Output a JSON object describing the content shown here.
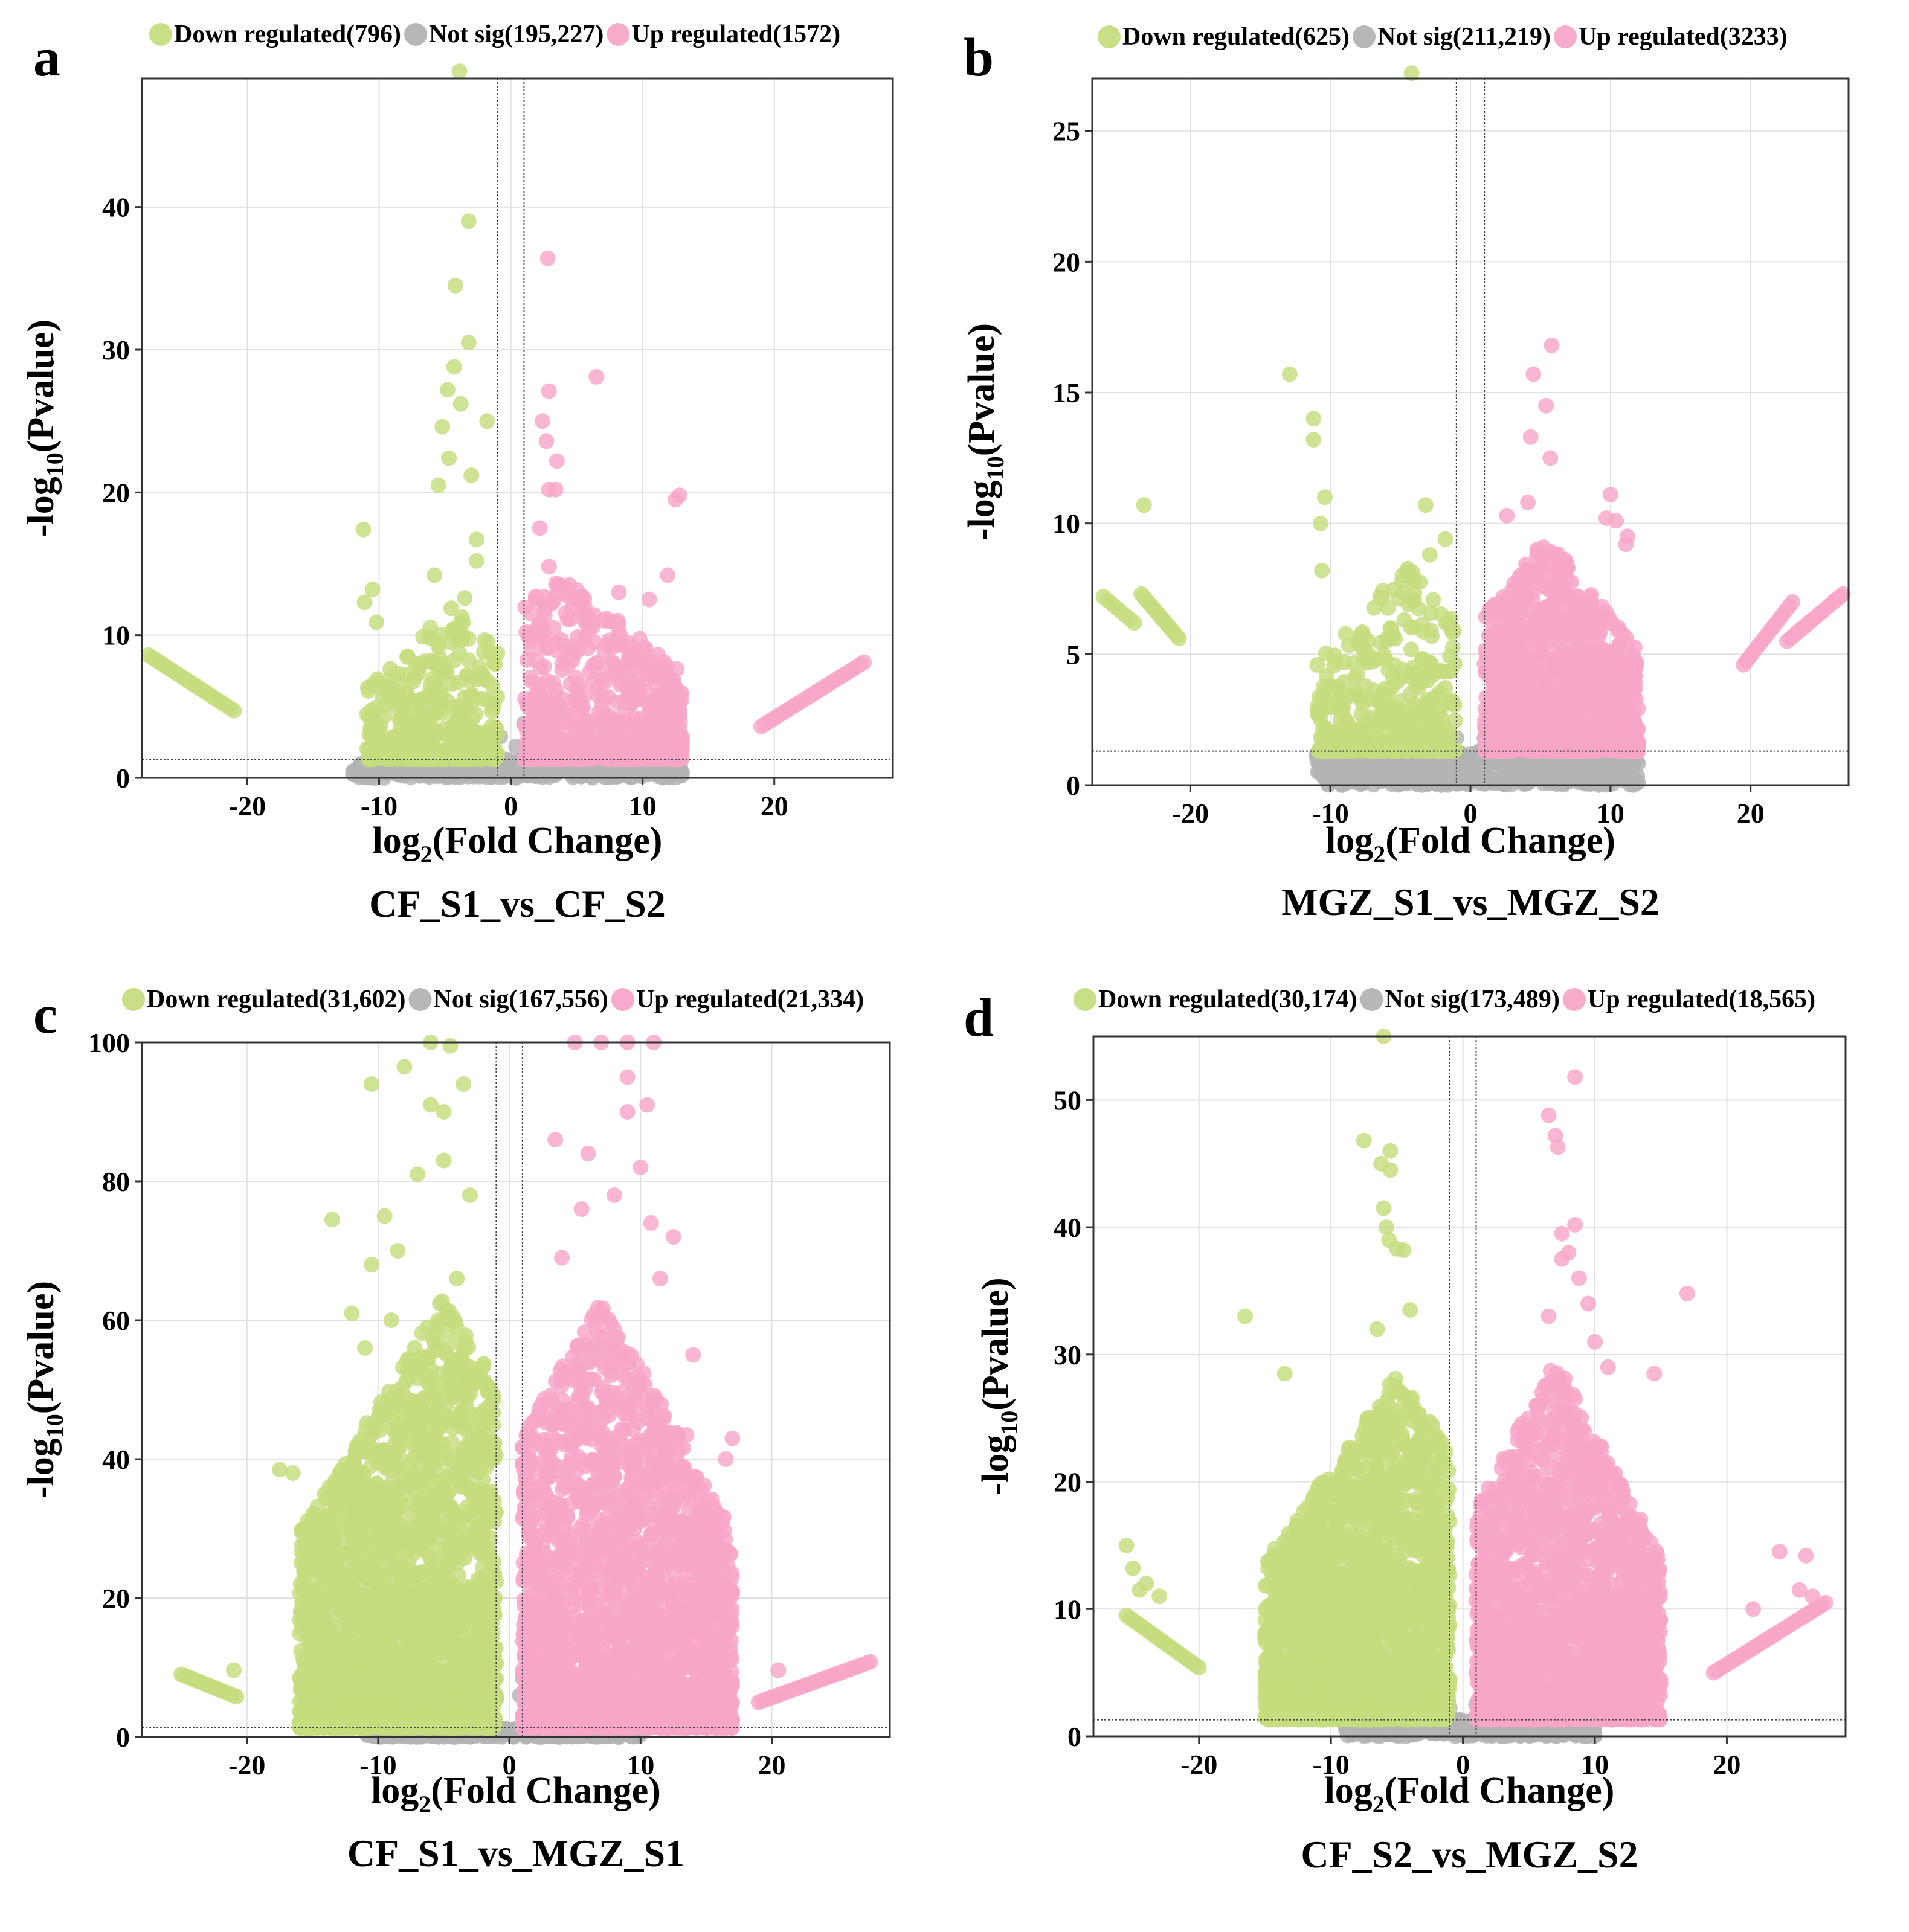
{
  "figure": {
    "background": "#ffffff"
  },
  "colors": {
    "down": "#c5dd7e",
    "notsig": "#b3b3b3",
    "up": "#f8a6c8",
    "grid": "#e0e0e0",
    "axis": "#333333"
  },
  "chart_data": [
    {
      "type": "scatter",
      "panel_label": "a",
      "title": "CF_S1_vs_CF_S2",
      "xlabel_prefix": "log",
      "xlabel_sub": "2",
      "xlabel_suffix": "(Fold Change)",
      "ylabel_prefix": "-log",
      "ylabel_sub": "10",
      "ylabel_suffix": "(Pvalue)",
      "legend": [
        {
          "name": "Down regulated",
          "count": "(796)",
          "key": "down"
        },
        {
          "name": "Not sig",
          "count": "(195,227)",
          "key": "notsig"
        },
        {
          "name": "Up regulated",
          "count": "(1572)",
          "key": "up"
        }
      ],
      "xlim": [
        -28,
        29
      ],
      "ylim": [
        0,
        49
      ],
      "xticks": [
        -20,
        -10,
        0,
        10,
        20
      ],
      "yticks": [
        0,
        10,
        20,
        30,
        40
      ],
      "fc_cutoffs": [
        -1,
        1
      ],
      "p_cutoff": 1.3,
      "seed": 11,
      "clouds": {
        "down": {
          "n": 430,
          "xmin": -11,
          "xmax": -1,
          "center": -4.5,
          "ymax": 10.5,
          "power": 2.6
        },
        "up": {
          "n": 650,
          "xmin": 1,
          "xmax": 13,
          "center": 3.5,
          "ymax": 13,
          "power": 2.4
        },
        "notsig": {
          "n": 520,
          "xmin": -12,
          "xmax": 13,
          "ymax": 1.3
        }
      },
      "down_points": [
        {
          "x": -3.9,
          "y": 49.5
        },
        {
          "x": -3.2,
          "y": 39
        },
        {
          "x": -4.2,
          "y": 34.5
        },
        {
          "x": -3.2,
          "y": 30.5
        },
        {
          "x": -4.3,
          "y": 28.8
        },
        {
          "x": -4.8,
          "y": 27.2
        },
        {
          "x": -1.8,
          "y": 25
        },
        {
          "x": -3.8,
          "y": 26.2
        },
        {
          "x": -5.2,
          "y": 24.6
        },
        {
          "x": -3,
          "y": 21.2
        },
        {
          "x": -4.7,
          "y": 22.4
        },
        {
          "x": -5.5,
          "y": 20.5
        },
        {
          "x": -11.2,
          "y": 17.4
        },
        {
          "x": -2.6,
          "y": 16.7
        },
        {
          "x": -5.8,
          "y": 14.2
        },
        {
          "x": -2.6,
          "y": 15.2
        },
        {
          "x": -10.5,
          "y": 13.2
        },
        {
          "x": -11.1,
          "y": 12.3
        },
        {
          "x": -3.5,
          "y": 12.6
        },
        {
          "x": -10.2,
          "y": 10.9
        },
        {
          "x": -3.8,
          "y": 10.2
        }
      ],
      "up_points": [
        {
          "x": 2.8,
          "y": 36.4
        },
        {
          "x": 6.5,
          "y": 28.1
        },
        {
          "x": 2.9,
          "y": 27.1
        },
        {
          "x": 2.4,
          "y": 25
        },
        {
          "x": 2.7,
          "y": 23.6
        },
        {
          "x": 3.5,
          "y": 22.2
        },
        {
          "x": 12.8,
          "y": 19.8
        },
        {
          "x": 12.5,
          "y": 19.5
        },
        {
          "x": 2.9,
          "y": 20.2
        },
        {
          "x": 3.4,
          "y": 20.2
        },
        {
          "x": 2.2,
          "y": 17.5
        },
        {
          "x": 11.9,
          "y": 14.2
        },
        {
          "x": 2.9,
          "y": 14.8
        },
        {
          "x": 10.5,
          "y": 12.5
        },
        {
          "x": 8.2,
          "y": 13
        }
      ],
      "notsig_points": [
        {
          "x": -0.8,
          "y": 2.9
        },
        {
          "x": 1,
          "y": 3.8
        },
        {
          "x": 0.4,
          "y": 2.2
        }
      ],
      "down_tails": [
        {
          "x0": -27.5,
          "x1": -21,
          "y0": 8.6,
          "y1": 4.7,
          "n": 26
        }
      ],
      "up_tails": [
        {
          "x0": 19,
          "x1": 26.8,
          "y0": 3.6,
          "y1": 8.1,
          "n": 30
        }
      ]
    },
    {
      "type": "scatter",
      "panel_label": "b",
      "title": "MGZ_S1_vs_MGZ_S2",
      "xlabel_prefix": "log",
      "xlabel_sub": "2",
      "xlabel_suffix": "(Fold Change)",
      "ylabel_prefix": "-log",
      "ylabel_sub": "10",
      "ylabel_suffix": "(Pvalue)",
      "legend": [
        {
          "name": "Down regulated",
          "count": "(625)",
          "key": "down"
        },
        {
          "name": "Not sig",
          "count": "(211,219)",
          "key": "notsig"
        },
        {
          "name": "Up regulated",
          "count": "(3233)",
          "key": "up"
        }
      ],
      "xlim": [
        -27,
        27
      ],
      "ylim": [
        0,
        27
      ],
      "xticks": [
        -20,
        -10,
        0,
        10,
        20
      ],
      "yticks": [
        0,
        5,
        10,
        15,
        20,
        25
      ],
      "fc_cutoffs": [
        -1,
        1
      ],
      "p_cutoff": 1.3,
      "seed": 23,
      "clouds": {
        "down": {
          "n": 420,
          "xmin": -11,
          "xmax": -1,
          "center": -4.5,
          "ymax": 7,
          "power": 2.4
        },
        "up": {
          "n": 1200,
          "xmin": 1,
          "xmax": 12,
          "center": 5.5,
          "ymax": 8,
          "power": 1.8
        },
        "notsig": {
          "n": 600,
          "xmin": -11,
          "xmax": 12,
          "ymax": 1.3
        }
      },
      "down_points": [
        {
          "x": -4.2,
          "y": 27.2
        },
        {
          "x": -12.9,
          "y": 15.7
        },
        {
          "x": -11.2,
          "y": 14
        },
        {
          "x": -11.2,
          "y": 13.2
        },
        {
          "x": -3.2,
          "y": 10.7
        },
        {
          "x": -10.4,
          "y": 11
        },
        {
          "x": -10.7,
          "y": 10
        },
        {
          "x": -1.8,
          "y": 9.4
        },
        {
          "x": -10.6,
          "y": 8.2
        },
        {
          "x": -2.9,
          "y": 8.8
        },
        {
          "x": -23.3,
          "y": 10.7
        }
      ],
      "up_points": [
        {
          "x": 5.8,
          "y": 16.8
        },
        {
          "x": 4.5,
          "y": 15.7
        },
        {
          "x": 5.4,
          "y": 14.5
        },
        {
          "x": 4.3,
          "y": 13.3
        },
        {
          "x": 5.7,
          "y": 12.5
        },
        {
          "x": 10,
          "y": 11.1
        },
        {
          "x": 2.6,
          "y": 10.3
        },
        {
          "x": 11.2,
          "y": 9.5
        },
        {
          "x": 9.7,
          "y": 10.2
        },
        {
          "x": 10.4,
          "y": 10.1
        },
        {
          "x": 11.1,
          "y": 9.2
        },
        {
          "x": 4.1,
          "y": 10.8
        }
      ],
      "notsig_points": [
        {
          "x": -1,
          "y": 1.8
        },
        {
          "x": 1,
          "y": 1.8
        }
      ],
      "down_tails": [
        {
          "x0": -26.2,
          "x1": -24,
          "y0": 7.2,
          "y1": 6.2,
          "n": 8
        },
        {
          "x0": -23.5,
          "x1": -20.8,
          "y0": 7.3,
          "y1": 5.6,
          "n": 16
        }
      ],
      "up_tails": [
        {
          "x0": 19.5,
          "x1": 23,
          "y0": 4.6,
          "y1": 7,
          "n": 18
        },
        {
          "x0": 22.6,
          "x1": 26.6,
          "y0": 5.5,
          "y1": 7.3,
          "n": 18
        }
      ]
    },
    {
      "type": "scatter",
      "panel_label": "c",
      "title": "CF_S1_vs_MGZ_S1",
      "xlabel_prefix": "log",
      "xlabel_sub": "2",
      "xlabel_suffix": "(Fold Change)",
      "ylabel_prefix": "-log",
      "ylabel_sub": "10",
      "ylabel_suffix": "(Pvalue)",
      "legend": [
        {
          "name": "Down regulated",
          "count": "(31,602)",
          "key": "down"
        },
        {
          "name": "Not sig",
          "count": "(167,556)",
          "key": "notsig"
        },
        {
          "name": "Up regulated",
          "count": "(21,334)",
          "key": "up"
        }
      ],
      "xlim": [
        -28,
        29
      ],
      "ylim": [
        0,
        100
      ],
      "xticks": [
        -20,
        -10,
        0,
        10,
        20
      ],
      "yticks": [
        0,
        20,
        40,
        60,
        80,
        100
      ],
      "fc_cutoffs": [
        -1,
        1
      ],
      "p_cutoff": 1.3,
      "seed": 37,
      "clouds": {
        "down": {
          "n": 2600,
          "xmin": -16,
          "xmax": -1,
          "center": -5,
          "ymax": 62,
          "power": 1.9
        },
        "up": {
          "n": 2400,
          "xmin": 1,
          "xmax": 17,
          "center": 7,
          "ymax": 62,
          "power": 1.9
        },
        "notsig": {
          "n": 650,
          "xmin": -11,
          "xmax": 10,
          "ymax": 1.3
        }
      },
      "down_points": [
        {
          "x": -6,
          "y": 100
        },
        {
          "x": -4.5,
          "y": 99.5
        },
        {
          "x": -10.5,
          "y": 94
        },
        {
          "x": -8,
          "y": 96.5
        },
        {
          "x": -3.5,
          "y": 94
        },
        {
          "x": -6,
          "y": 91
        },
        {
          "x": -5,
          "y": 90
        },
        {
          "x": -13.5,
          "y": 74.5
        },
        {
          "x": -9.5,
          "y": 75
        },
        {
          "x": -10.5,
          "y": 68
        },
        {
          "x": -8.5,
          "y": 70
        },
        {
          "x": -11,
          "y": 56
        },
        {
          "x": -7,
          "y": 81
        },
        {
          "x": -5,
          "y": 83
        },
        {
          "x": -3,
          "y": 78
        },
        {
          "x": -17.5,
          "y": 38.5
        },
        {
          "x": -16.5,
          "y": 38
        },
        {
          "x": -4,
          "y": 66
        },
        {
          "x": -9,
          "y": 60
        },
        {
          "x": -12,
          "y": 61
        }
      ],
      "up_points": [
        {
          "x": 5,
          "y": 100
        },
        {
          "x": 7,
          "y": 100
        },
        {
          "x": 9,
          "y": 100
        },
        {
          "x": 11,
          "y": 100
        },
        {
          "x": 9,
          "y": 95
        },
        {
          "x": 10.5,
          "y": 91
        },
        {
          "x": 3.5,
          "y": 86
        },
        {
          "x": 9,
          "y": 90
        },
        {
          "x": 6,
          "y": 84
        },
        {
          "x": 10,
          "y": 82
        },
        {
          "x": 8,
          "y": 78
        },
        {
          "x": 5.5,
          "y": 76
        },
        {
          "x": 10.8,
          "y": 74
        },
        {
          "x": 12.5,
          "y": 72
        },
        {
          "x": 4,
          "y": 69
        },
        {
          "x": 11.5,
          "y": 66
        },
        {
          "x": 14,
          "y": 55
        },
        {
          "x": 17,
          "y": 43
        },
        {
          "x": 16.5,
          "y": 40
        },
        {
          "x": 13.5,
          "y": 43.5
        }
      ],
      "notsig_points": [
        {
          "x": -1,
          "y": 5.5
        },
        {
          "x": 1,
          "y": 8.5
        },
        {
          "x": 0.8,
          "y": 6
        }
      ],
      "down_tails": [
        {
          "x0": -25,
          "x1": -20.8,
          "y0": 9,
          "y1": 5.8,
          "n": 18
        },
        {
          "x0": -21,
          "x1": -21,
          "y0": 9.6,
          "y1": 9.6,
          "n": 1
        }
      ],
      "up_tails": [
        {
          "x0": 19,
          "x1": 27.5,
          "y0": 5,
          "y1": 10.8,
          "n": 34
        },
        {
          "x0": 20.5,
          "x1": 20.5,
          "y0": 9.6,
          "y1": 9.6,
          "n": 1
        }
      ]
    },
    {
      "type": "scatter",
      "panel_label": "d",
      "title": "CF_S2_vs_MGZ_S2",
      "xlabel_prefix": "log",
      "xlabel_sub": "2",
      "xlabel_suffix": "(Fold Change)",
      "ylabel_prefix": "-log",
      "ylabel_sub": "10",
      "ylabel_suffix": "(Pvalue)",
      "legend": [
        {
          "name": "Down regulated",
          "count": "(30,174)",
          "key": "down"
        },
        {
          "name": "Not sig",
          "count": "(173,489)",
          "key": "notsig"
        },
        {
          "name": "Up regulated",
          "count": "(18,565)",
          "key": "up"
        }
      ],
      "xlim": [
        -28,
        29
      ],
      "ylim": [
        0,
        55
      ],
      "xticks": [
        -20,
        -10,
        0,
        10,
        20
      ],
      "yticks": [
        0,
        10,
        20,
        30,
        40,
        50
      ],
      "fc_cutoffs": [
        -1,
        1
      ],
      "p_cutoff": 1.3,
      "seed": 53,
      "clouds": {
        "down": {
          "n": 2300,
          "xmin": -15,
          "xmax": -1,
          "center": -5,
          "ymax": 27,
          "power": 1.8
        },
        "up": {
          "n": 2100,
          "xmin": 1,
          "xmax": 15,
          "center": 7,
          "ymax": 28,
          "power": 1.8
        },
        "notsig": {
          "n": 650,
          "xmin": -9,
          "xmax": 10,
          "ymax": 1.3
        }
      },
      "down_points": [
        {
          "x": -6,
          "y": 55
        },
        {
          "x": -7.5,
          "y": 46.8
        },
        {
          "x": -5.5,
          "y": 46
        },
        {
          "x": -6.2,
          "y": 45
        },
        {
          "x": -5.5,
          "y": 44.5
        },
        {
          "x": -6,
          "y": 41.5
        },
        {
          "x": -5.8,
          "y": 40
        },
        {
          "x": -5.6,
          "y": 39
        },
        {
          "x": -5,
          "y": 38.3
        },
        {
          "x": -4.5,
          "y": 38.2
        },
        {
          "x": -16.5,
          "y": 33
        },
        {
          "x": -4,
          "y": 33.5
        },
        {
          "x": -6.5,
          "y": 32
        },
        {
          "x": -13.5,
          "y": 28.5
        },
        {
          "x": -25.5,
          "y": 15
        },
        {
          "x": -25,
          "y": 13.2
        },
        {
          "x": -24.5,
          "y": 11.5
        },
        {
          "x": -23,
          "y": 11
        },
        {
          "x": -24,
          "y": 12
        }
      ],
      "up_points": [
        {
          "x": 8.5,
          "y": 51.8
        },
        {
          "x": 6.5,
          "y": 48.8
        },
        {
          "x": 7,
          "y": 47.2
        },
        {
          "x": 7.2,
          "y": 46.3
        },
        {
          "x": 8.5,
          "y": 40.2
        },
        {
          "x": 7.5,
          "y": 39.5
        },
        {
          "x": 8,
          "y": 38
        },
        {
          "x": 7.5,
          "y": 37.5
        },
        {
          "x": 8.8,
          "y": 36
        },
        {
          "x": 17,
          "y": 34.8
        },
        {
          "x": 9.5,
          "y": 34
        },
        {
          "x": 6.5,
          "y": 33
        },
        {
          "x": 10,
          "y": 31
        },
        {
          "x": 11,
          "y": 29
        },
        {
          "x": 14.5,
          "y": 28.5
        },
        {
          "x": 24,
          "y": 14.5
        },
        {
          "x": 26,
          "y": 14.2
        },
        {
          "x": 25.5,
          "y": 11.5
        },
        {
          "x": 26.5,
          "y": 11
        },
        {
          "x": 22,
          "y": 10
        }
      ],
      "notsig_points": [
        {
          "x": -1,
          "y": 2.2
        },
        {
          "x": 1,
          "y": 2.5
        }
      ],
      "down_tails": [
        {
          "x0": -25.5,
          "x1": -20,
          "y0": 9.5,
          "y1": 5.4,
          "n": 22
        }
      ],
      "up_tails": [
        {
          "x0": 19,
          "x1": 27.5,
          "y0": 5,
          "y1": 10.5,
          "n": 34
        }
      ]
    }
  ]
}
